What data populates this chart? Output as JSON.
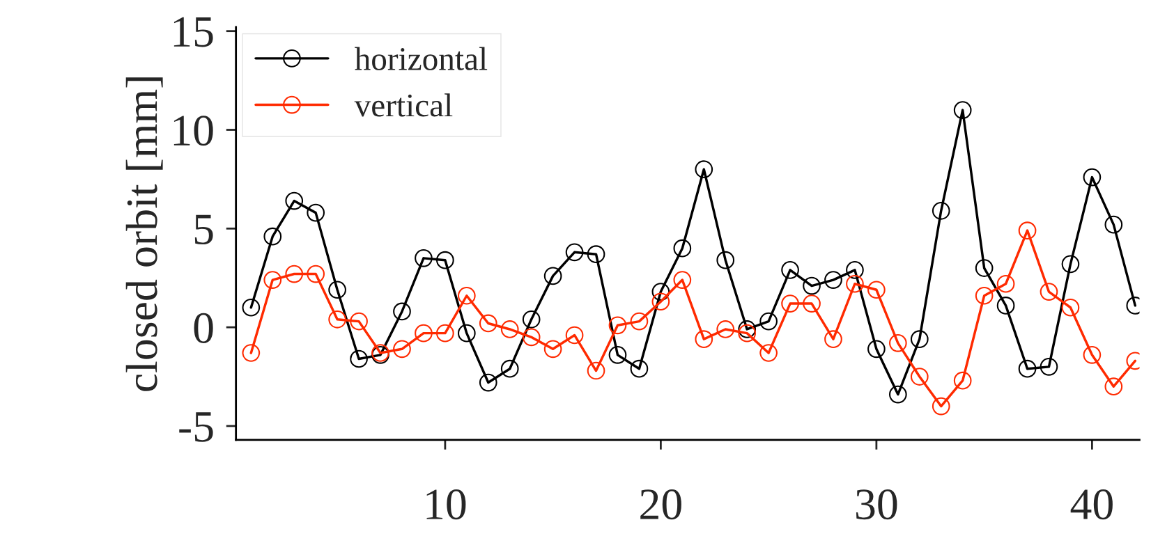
{
  "chart_data": {
    "type": "line",
    "ylabel": "closed orbit [mm]",
    "x": [
      1,
      2,
      3,
      4,
      5,
      6,
      7,
      8,
      9,
      10,
      11,
      12,
      13,
      14,
      15,
      16,
      17,
      18,
      19,
      20,
      21,
      22,
      23,
      24,
      25,
      26,
      27,
      28,
      29,
      30,
      31,
      32,
      33,
      34,
      35,
      36,
      37,
      38,
      39,
      40,
      41,
      42
    ],
    "series": [
      {
        "name": "horizontal",
        "color": "#000000",
        "values": [
          1.0,
          4.6,
          6.4,
          5.8,
          1.9,
          -1.6,
          -1.4,
          0.8,
          3.5,
          3.4,
          -0.3,
          -2.8,
          -2.1,
          0.4,
          2.6,
          3.8,
          3.7,
          -1.4,
          -2.1,
          1.8,
          4.0,
          8.0,
          3.4,
          -0.1,
          0.3,
          2.9,
          2.1,
          2.4,
          2.9,
          -1.1,
          -3.4,
          -0.6,
          5.9,
          11.0,
          3.0,
          1.1,
          -2.1,
          -2.0,
          3.2,
          7.6,
          5.2,
          1.1
        ]
      },
      {
        "name": "vertical",
        "color": "#ff2a00",
        "values": [
          -1.3,
          2.4,
          2.7,
          2.7,
          0.4,
          0.3,
          -1.3,
          -1.1,
          -0.3,
          -0.3,
          1.6,
          0.2,
          -0.1,
          -0.5,
          -1.1,
          -0.4,
          -2.2,
          0.1,
          0.3,
          1.3,
          2.4,
          -0.6,
          -0.1,
          -0.3,
          -1.3,
          1.2,
          1.2,
          -0.6,
          2.2,
          1.9,
          -0.8,
          -2.5,
          -4.0,
          -2.7,
          1.6,
          2.2,
          4.9,
          1.8,
          1.0,
          -1.4,
          -3.0,
          -1.7
        ]
      }
    ],
    "xlim": [
      0.3,
      42.2
    ],
    "xticks": [
      10,
      20,
      30,
      40
    ],
    "ylim": [
      -5.7,
      15.2
    ],
    "yticks": [
      {
        "value": -5,
        "label": "-5"
      },
      0,
      5,
      10,
      15
    ],
    "marker": "circle",
    "line_style": "solid",
    "legend": "top left",
    "grid": false
  }
}
